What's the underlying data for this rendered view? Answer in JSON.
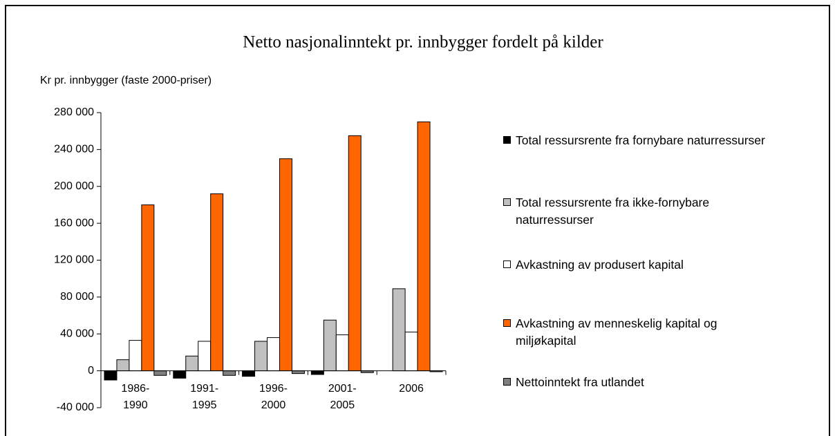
{
  "chart_data": {
    "type": "bar",
    "title": "Netto nasjonalinntekt pr. innbygger fordelt på kilder",
    "y_label": "Kr pr. innbygger (faste 2000-priser)",
    "categories": [
      "1986-1990",
      "1991-1995",
      "1996-2000",
      "2001-2005",
      "2006"
    ],
    "series": [
      {
        "name": "Total ressursrente fra fornybare naturressurser",
        "color": "#000000",
        "values": [
          -10000,
          -8000,
          -6000,
          -4000,
          0
        ]
      },
      {
        "name": "Total ressursrente fra ikke-fornybare naturressurser",
        "color": "#c0c0c0",
        "values": [
          12000,
          16000,
          32000,
          55000,
          89000
        ]
      },
      {
        "name": "Avkastning av produsert kapital",
        "color": "#ffffff",
        "values": [
          33000,
          32000,
          36000,
          39000,
          42000
        ]
      },
      {
        "name": "Avkastning av menneskelig kapital og miljøkapital",
        "color": "#ff6600",
        "values": [
          180000,
          192000,
          230000,
          255000,
          270000
        ]
      },
      {
        "name": "Nettoinntekt fra utlandet",
        "color": "#808080",
        "values": [
          -5000,
          -5000,
          -3000,
          -2000,
          -1000
        ]
      }
    ],
    "ylim": [
      -40000,
      280000
    ],
    "yticks": [
      {
        "value": -40000,
        "label": "-40 000"
      },
      0,
      {
        "value": 40000,
        "label": "40 000"
      },
      {
        "value": 80000,
        "label": "80 000"
      },
      {
        "value": 120000,
        "label": "120 000"
      },
      {
        "value": 160000,
        "label": "160 000"
      },
      {
        "value": 200000,
        "label": "200 000"
      },
      {
        "value": 240000,
        "label": "240 000"
      },
      {
        "value": 280000,
        "label": "280 000"
      }
    ],
    "legend": "right"
  }
}
